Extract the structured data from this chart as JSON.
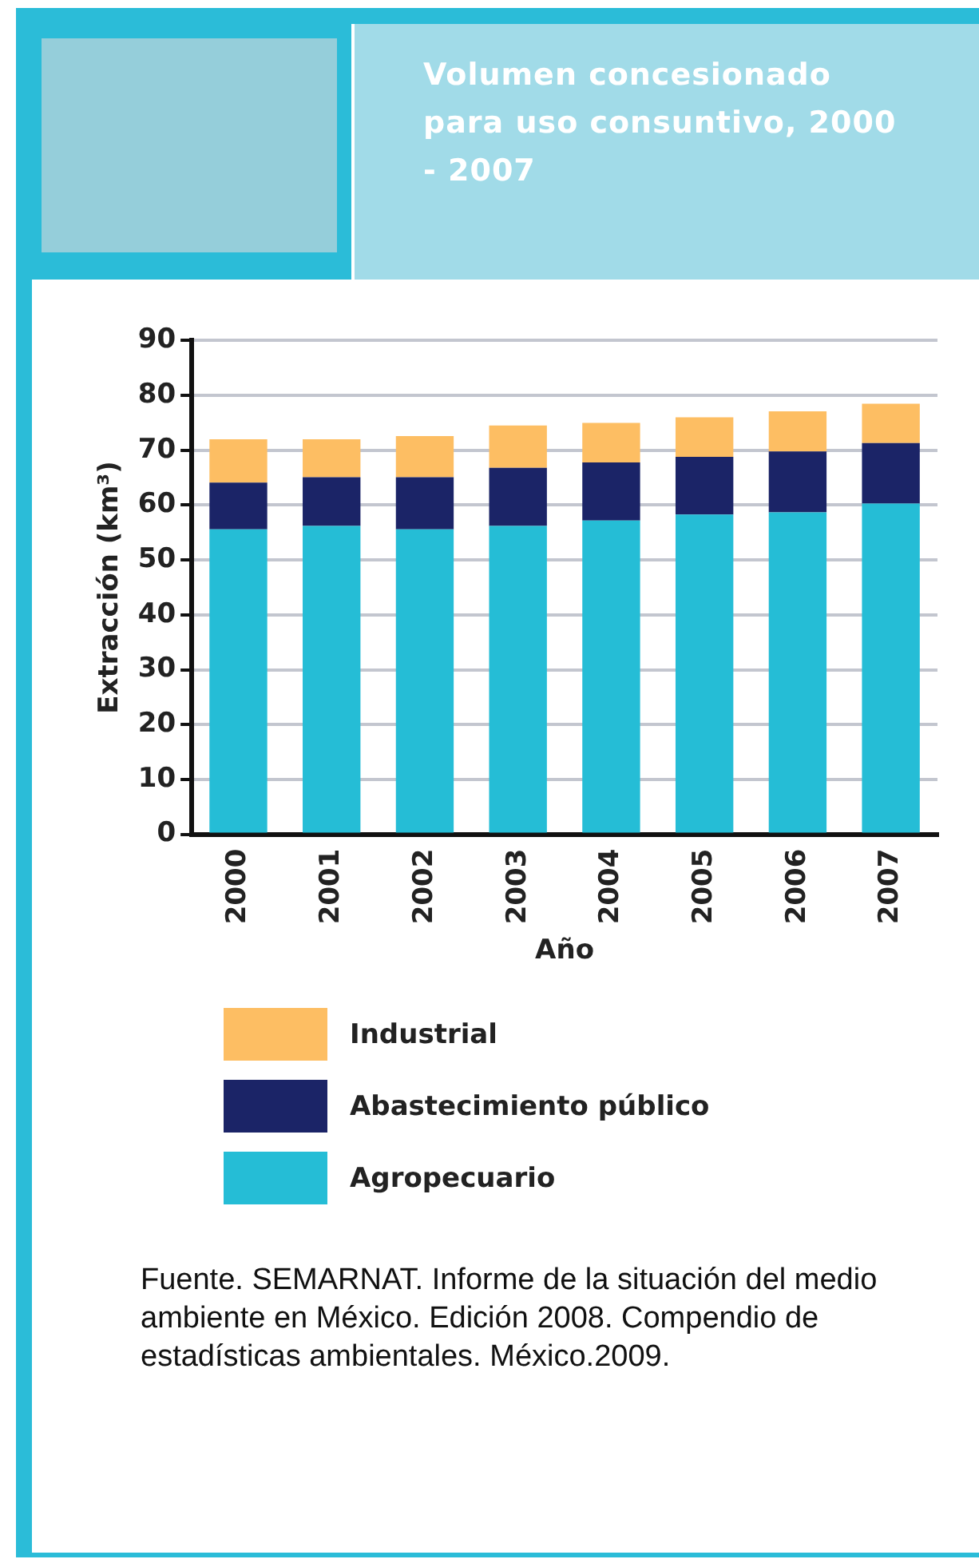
{
  "chart_data": {
    "type": "bar",
    "title": "Volumen concesionado para uso consuntivo, 2000 - 2007",
    "xlabel": "Año",
    "ylabel": "Extracción (km³)",
    "categories": [
      "2000",
      "2001",
      "2002",
      "2003",
      "2004",
      "2005",
      "2006",
      "2007"
    ],
    "stacked": true,
    "series": [
      {
        "name": "Agropecuario",
        "color": "#25bdd6",
        "values": [
          55.6,
          56.2,
          55.6,
          56.2,
          57.2,
          58.3,
          58.7,
          60.3
        ]
      },
      {
        "name": "Abastecimiento público",
        "color": "#1b2467",
        "values": [
          8.5,
          8.9,
          9.5,
          10.6,
          10.6,
          10.5,
          11.1,
          11.0
        ]
      },
      {
        "name": "Industrial",
        "color": "#fdbe63",
        "values": [
          7.9,
          6.9,
          7.5,
          7.7,
          7.2,
          7.2,
          7.3,
          7.2
        ]
      }
    ],
    "ylim": [
      0,
      90
    ],
    "yticks": [
      0,
      10,
      20,
      30,
      40,
      50,
      60,
      70,
      80,
      90
    ],
    "grid": "y",
    "legend": "bottom",
    "annotations": [
      "Fuente. SEMARNAT. Informe de la situación del medio ambiente en México. Edición 2008. Compendio de estadísticas ambientales. México.2009."
    ]
  }
}
